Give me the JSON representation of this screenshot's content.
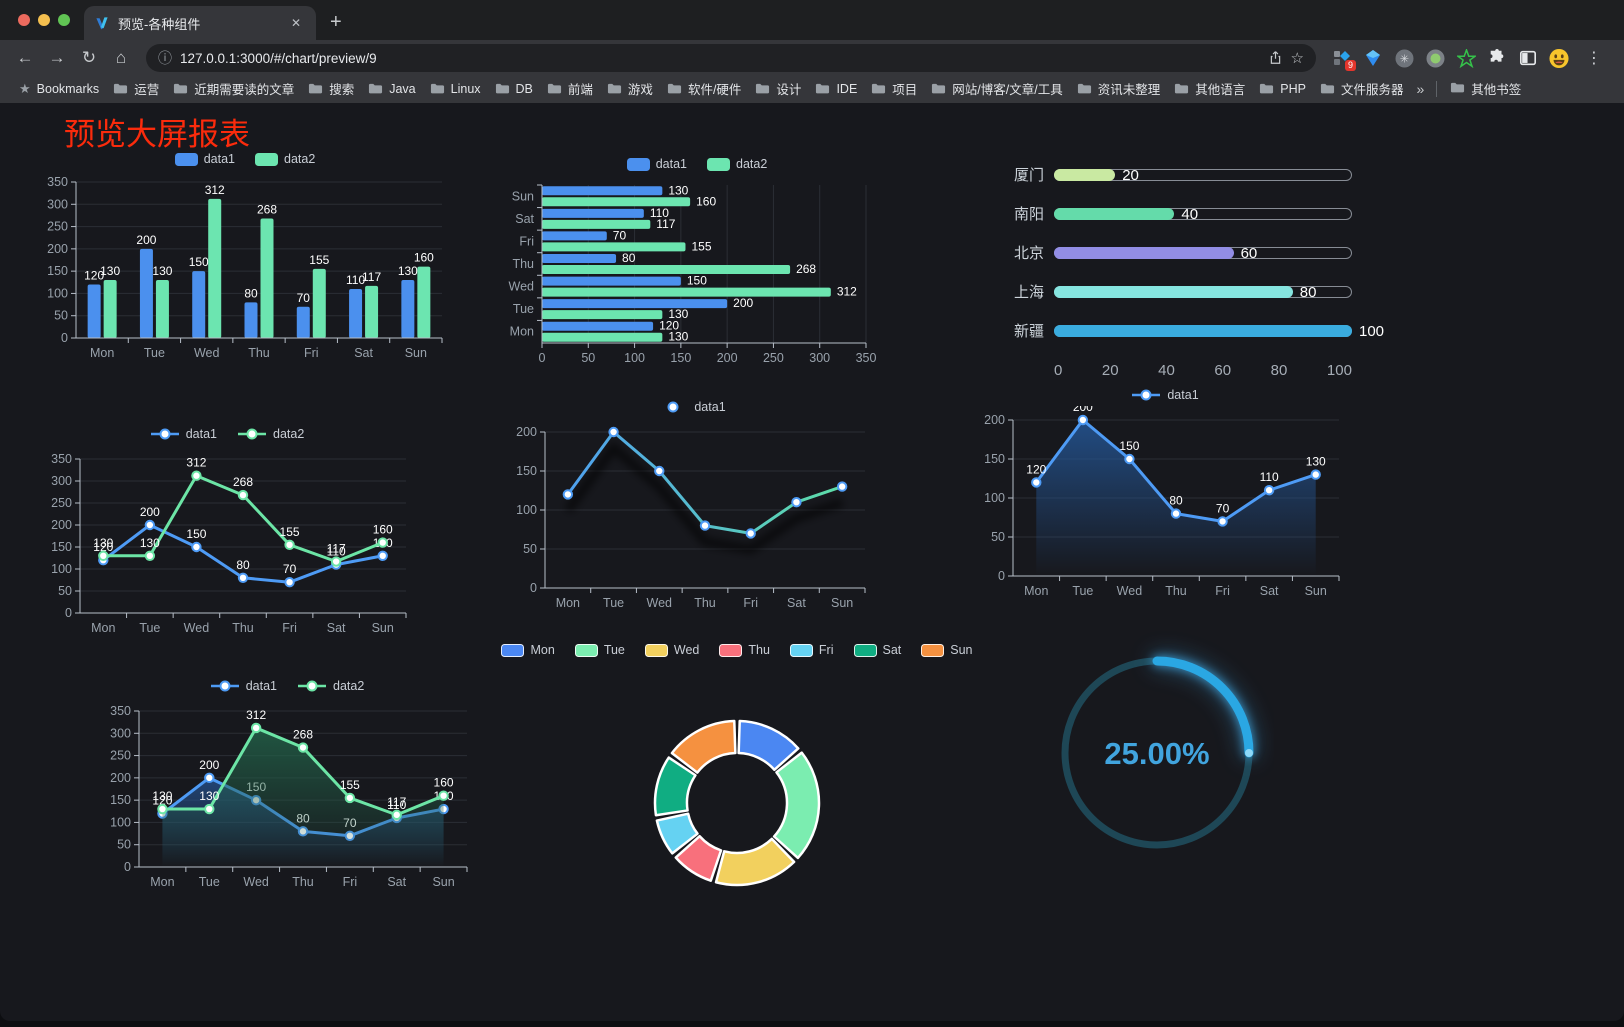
{
  "window": {
    "tab_title": "预览-各种组件",
    "url": "127.0.0.1:3000/#/chart/preview/9"
  },
  "icons": {
    "close": "✕",
    "new_tab": "+",
    "back": "←",
    "forward": "→",
    "reload": "↻",
    "home": "⌂",
    "info": "ⓘ",
    "star": "☆",
    "bookmarks_star": "★",
    "kebab": "⋮"
  },
  "bookmarks": {
    "label": "Bookmarks",
    "folders": [
      "运营",
      "近期需要读的文章",
      "搜索",
      "Java",
      "Linux",
      "DB",
      "前端",
      "游戏",
      "软件/硬件",
      "设计",
      "IDE",
      "项目",
      "网站/博客/文章/工具",
      "资讯未整理",
      "其他语言",
      "PHP",
      "文件服务器"
    ],
    "overflow": "»",
    "other": "其他书签"
  },
  "page": {
    "title": "预览大屏报表",
    "title_color": "#fb2b0c"
  },
  "charts": [
    {
      "id": "grouped-bar",
      "type": "bar",
      "categories": [
        "Mon",
        "Tue",
        "Wed",
        "Thu",
        "Fri",
        "Sat",
        "Sun"
      ],
      "series": [
        {
          "name": "data1",
          "color": "#4b90ee",
          "values": [
            120,
            200,
            150,
            80,
            70,
            110,
            130
          ]
        },
        {
          "name": "data2",
          "color": "#6ce5b0",
          "values": [
            130,
            130,
            312,
            268,
            155,
            117,
            160
          ]
        }
      ],
      "ylim": [
        0,
        350
      ],
      "yticks": [
        0,
        50,
        100,
        150,
        200,
        250,
        300,
        350
      ]
    },
    {
      "id": "horizontal-bar",
      "type": "hbar",
      "categories": [
        "Mon",
        "Tue",
        "Wed",
        "Thu",
        "Fri",
        "Sat",
        "Sun"
      ],
      "series": [
        {
          "name": "data1",
          "color": "#4b90ee",
          "values": [
            120,
            200,
            150,
            80,
            70,
            110,
            130
          ]
        },
        {
          "name": "data2",
          "color": "#6ce5b0",
          "values": [
            130,
            130,
            312,
            268,
            155,
            117,
            160
          ]
        }
      ],
      "xlim": [
        0,
        350
      ],
      "xticks": [
        0,
        50,
        100,
        150,
        200,
        250,
        300,
        350
      ]
    },
    {
      "id": "city-progress",
      "type": "progress",
      "max": 100,
      "items": [
        {
          "label": "厦门",
          "value": 20,
          "color": "#c9e9a2"
        },
        {
          "label": "南阳",
          "value": 40,
          "color": "#64dbaa"
        },
        {
          "label": "北京",
          "value": 60,
          "color": "#928de5"
        },
        {
          "label": "上海",
          "value": 80,
          "color": "#86e5e0"
        },
        {
          "label": "新疆",
          "value": 100,
          "color": "#3aacdf"
        }
      ],
      "ticks": [
        0,
        20,
        40,
        60,
        80,
        100
      ]
    },
    {
      "id": "two-line",
      "type": "line",
      "categories": [
        "Mon",
        "Tue",
        "Wed",
        "Thu",
        "Fri",
        "Sat",
        "Sun"
      ],
      "series": [
        {
          "name": "data1",
          "color": "#4e9bf5",
          "values": [
            120,
            200,
            150,
            80,
            70,
            110,
            130
          ],
          "labels": true
        },
        {
          "name": "data2",
          "color": "#6ce5a6",
          "values": [
            130,
            130,
            312,
            268,
            155,
            117,
            160
          ],
          "labels": true
        }
      ],
      "ylim": [
        0,
        350
      ],
      "yticks": [
        0,
        50,
        100,
        150,
        200,
        250,
        300,
        350
      ]
    },
    {
      "id": "gradient-line",
      "type": "line",
      "shadow": true,
      "categories": [
        "Mon",
        "Tue",
        "Wed",
        "Thu",
        "Fri",
        "Sat",
        "Sun"
      ],
      "series": [
        {
          "name": "data1",
          "gradient": [
            "#4e9bf5",
            "#5fe3a1"
          ],
          "marker_color": "#4e9bf5",
          "values": [
            120,
            200,
            150,
            80,
            70,
            110,
            130
          ],
          "labels": false
        }
      ],
      "ylim": [
        0,
        200
      ],
      "yticks": [
        0,
        50,
        100,
        150,
        200
      ]
    },
    {
      "id": "area-line",
      "type": "line",
      "categories": [
        "Mon",
        "Tue",
        "Wed",
        "Thu",
        "Fri",
        "Sat",
        "Sun"
      ],
      "series": [
        {
          "name": "data1",
          "color": "#4e9bf5",
          "values": [
            120,
            200,
            150,
            80,
            70,
            110,
            130
          ],
          "labels": true,
          "area": [
            "rgba(36,86,150,0.85)",
            "rgba(36,86,150,0)"
          ]
        }
      ],
      "ylim": [
        0,
        200
      ],
      "yticks": [
        0,
        50,
        100,
        150,
        200
      ]
    },
    {
      "id": "two-area",
      "type": "line",
      "categories": [
        "Mon",
        "Tue",
        "Wed",
        "Thu",
        "Fri",
        "Sat",
        "Sun"
      ],
      "series": [
        {
          "name": "data1",
          "color": "#4e9bf5",
          "values": [
            120,
            200,
            150,
            80,
            70,
            110,
            130
          ],
          "labels": true,
          "area": [
            "rgba(38,84,148,0.75)",
            "rgba(38,84,148,0)"
          ]
        },
        {
          "name": "data2",
          "color": "#6ce5a6",
          "values": [
            130,
            130,
            312,
            268,
            155,
            117,
            160
          ],
          "labels": true,
          "area": [
            "rgba(34,96,72,0.85)",
            "rgba(34,96,72,0)"
          ]
        }
      ],
      "ylim": [
        0,
        350
      ],
      "yticks": [
        0,
        50,
        100,
        150,
        200,
        250,
        300,
        350
      ]
    },
    {
      "id": "donut",
      "type": "donut",
      "categories": [
        "Mon",
        "Tue",
        "Wed",
        "Thu",
        "Fri",
        "Sat",
        "Sun"
      ],
      "values": [
        120,
        200,
        150,
        80,
        70,
        110,
        130
      ],
      "colors": [
        "#4b87f2",
        "#7bedb0",
        "#f2d05e",
        "#f8707c",
        "#65d2f2",
        "#10ad82",
        "#f59140"
      ]
    },
    {
      "id": "gauge",
      "type": "gauge",
      "percent": 25,
      "label": "25.00%",
      "color": "#2aa7e3",
      "track_color": "#1e4756",
      "text_color": "#41a4de"
    }
  ]
}
